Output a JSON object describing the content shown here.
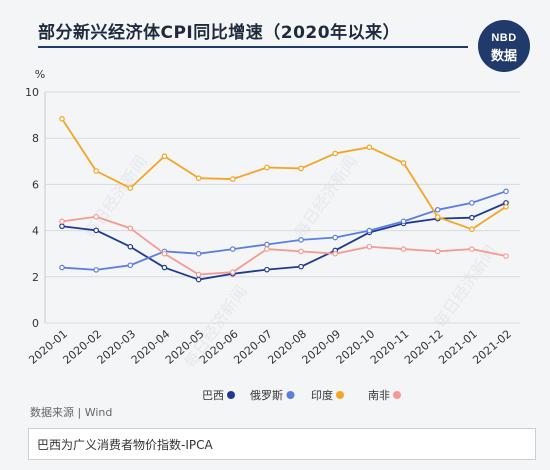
{
  "title": "部分新兴经济体CPI同比增速（2020年以来）",
  "logo": {
    "top": "NBD",
    "bottom": "数据"
  },
  "source": "数据来源 | Wind",
  "note": "巴西为广义消费者物价指数-IPCA",
  "watermark": "每日经济新闻",
  "chart_data": {
    "type": "line",
    "ylabel": "%",
    "ylim": [
      0,
      10
    ],
    "yticks": [
      0,
      2,
      4,
      6,
      8,
      10
    ],
    "categories": [
      "2020-01",
      "2020-02",
      "2020-03",
      "2020-04",
      "2020-05",
      "2020-06",
      "2020-07",
      "2020-08",
      "2020-09",
      "2020-10",
      "2020-11",
      "2020-12",
      "2021-01",
      "2021-02"
    ],
    "grid": true,
    "legend_position": "bottom",
    "series": [
      {
        "name": "巴西",
        "color": "#1f3b8f",
        "values": [
          4.19,
          4.01,
          3.3,
          2.4,
          1.88,
          2.13,
          2.31,
          2.44,
          3.14,
          3.92,
          4.31,
          4.52,
          4.56,
          5.2
        ]
      },
      {
        "name": "俄罗斯",
        "color": "#5b7fe0",
        "values": [
          2.4,
          2.3,
          2.5,
          3.1,
          3.0,
          3.2,
          3.4,
          3.6,
          3.7,
          4.0,
          4.4,
          4.9,
          5.2,
          5.7
        ]
      },
      {
        "name": "印度",
        "color": "#f5a524",
        "values": [
          8.84,
          6.58,
          5.84,
          7.22,
          6.27,
          6.23,
          6.73,
          6.69,
          7.34,
          7.61,
          6.93,
          4.59,
          4.06,
          5.03
        ]
      },
      {
        "name": "南非",
        "color": "#f59a93",
        "values": [
          4.4,
          4.6,
          4.1,
          3.0,
          2.1,
          2.2,
          3.2,
          3.1,
          3.0,
          3.3,
          3.2,
          3.1,
          3.2,
          2.9
        ]
      }
    ]
  }
}
